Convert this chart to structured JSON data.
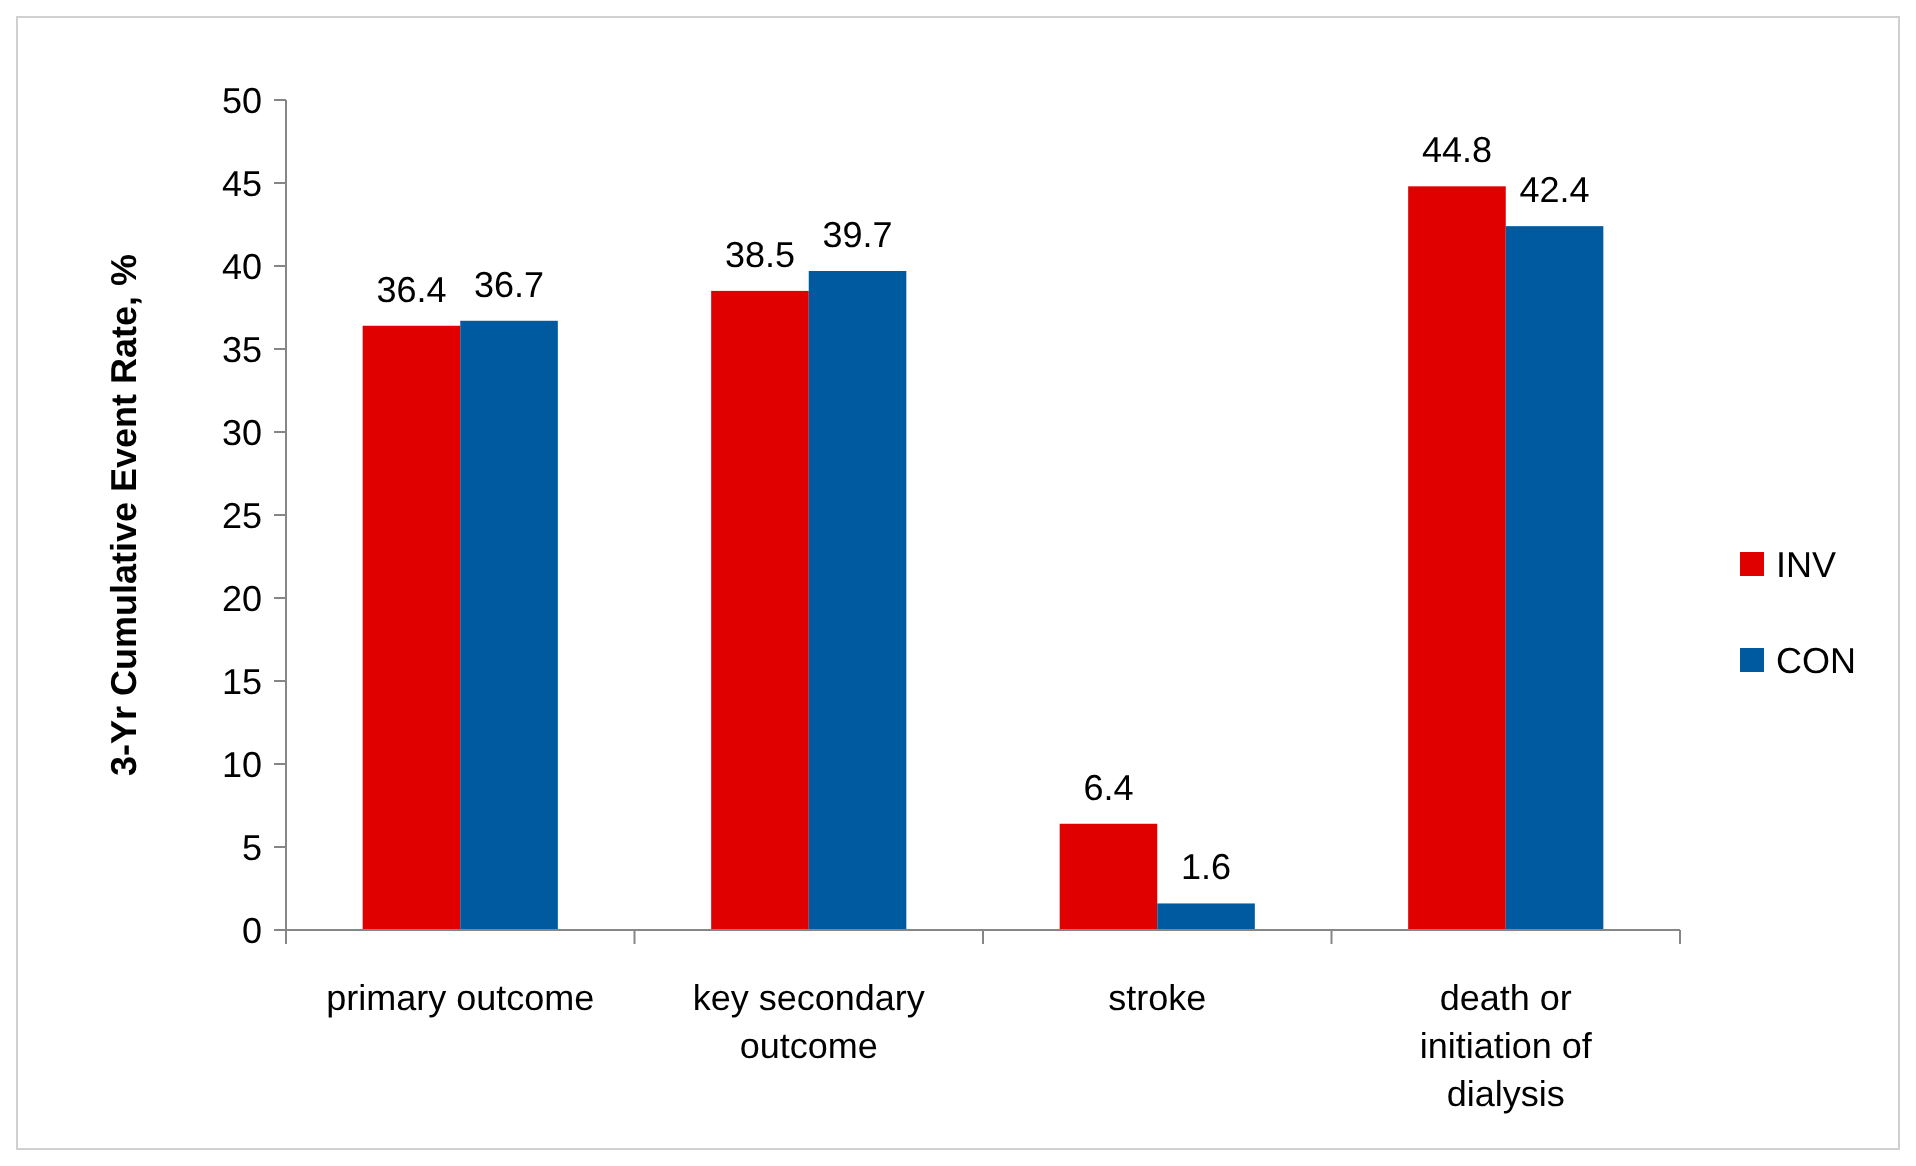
{
  "chart_data": {
    "type": "bar",
    "ylabel": "3-Yr Cumulative Event Rate, %",
    "categories": [
      "primary outcome",
      "key secondary outcome",
      "stroke",
      "death or initiation of dialysis"
    ],
    "series": [
      {
        "name": "INV",
        "color": "#e00000",
        "values": [
          36.4,
          38.5,
          6.4,
          44.8
        ]
      },
      {
        "name": "CON",
        "color": "#005aa0",
        "values": [
          36.7,
          39.7,
          1.6,
          42.4
        ]
      }
    ],
    "ylim": [
      0,
      50
    ],
    "yticks": [
      0,
      5,
      10,
      15,
      20,
      25,
      30,
      35,
      40,
      45,
      50
    ],
    "grid": false,
    "legend": "right",
    "data_labels": true
  }
}
